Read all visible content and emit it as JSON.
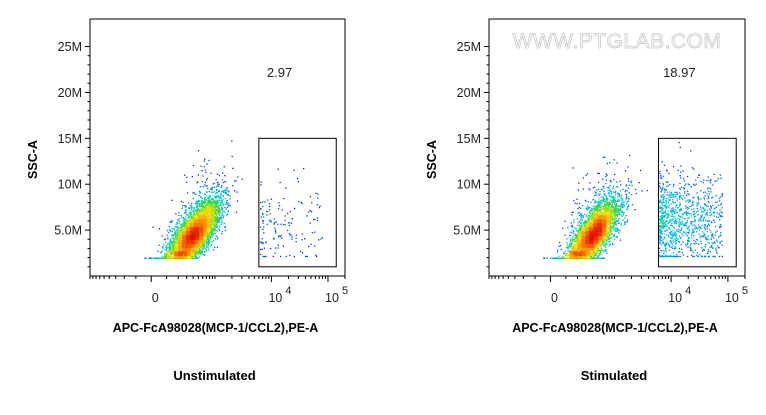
{
  "watermark": "WWW.PTGLAB.COM",
  "chart_data": [
    {
      "type": "scatter",
      "subtype": "flow-cytometry-density-dot-plot",
      "caption": "Unstimulated",
      "xlabel": "APC-FcA98028(MCP-1/CCL2),PE-A",
      "ylabel": "SSC-A",
      "x_scale": "biexponential",
      "y_scale": "linear",
      "x_ticks": [
        {
          "value": 0,
          "label": "0"
        },
        {
          "value": 10000,
          "label": "10",
          "exp": "4"
        },
        {
          "value": 100000,
          "label": "10",
          "exp": "5"
        }
      ],
      "y_ticks": [
        {
          "value": 5000000,
          "label": "5.0M"
        },
        {
          "value": 10000000,
          "label": "10M"
        },
        {
          "value": 15000000,
          "label": "15M"
        },
        {
          "value": 20000000,
          "label": "20M"
        },
        {
          "value": 25000000,
          "label": "25M"
        }
      ],
      "ylim": [
        0,
        28000000
      ],
      "gate": {
        "x_range": [
          6000,
          140000
        ],
        "y_range": [
          1000000,
          15000000
        ],
        "percent": "2.97"
      },
      "population": {
        "center_x": 400,
        "center_y": 4500000,
        "n_points": 5000,
        "gate_fraction": 0.0297
      }
    },
    {
      "type": "scatter",
      "subtype": "flow-cytometry-density-dot-plot",
      "caption": "Stimulated",
      "xlabel": "APC-FcA98028(MCP-1/CCL2),PE-A",
      "ylabel": "SSC-A",
      "x_scale": "biexponential",
      "y_scale": "linear",
      "x_ticks": [
        {
          "value": 0,
          "label": "0"
        },
        {
          "value": 10000,
          "label": "10",
          "exp": "4"
        },
        {
          "value": 100000,
          "label": "10",
          "exp": "5"
        }
      ],
      "y_ticks": [
        {
          "value": 5000000,
          "label": "5.0M"
        },
        {
          "value": 10000000,
          "label": "10M"
        },
        {
          "value": 15000000,
          "label": "15M"
        },
        {
          "value": 20000000,
          "label": "20M"
        },
        {
          "value": 25000000,
          "label": "25M"
        }
      ],
      "ylim": [
        0,
        28000000
      ],
      "gate": {
        "x_range": [
          6000,
          140000
        ],
        "y_range": [
          1000000,
          15000000
        ],
        "percent": "18.97"
      },
      "population": {
        "center_x": 400,
        "center_y": 4500000,
        "n_points": 5000,
        "gate_fraction": 0.1897
      }
    }
  ]
}
